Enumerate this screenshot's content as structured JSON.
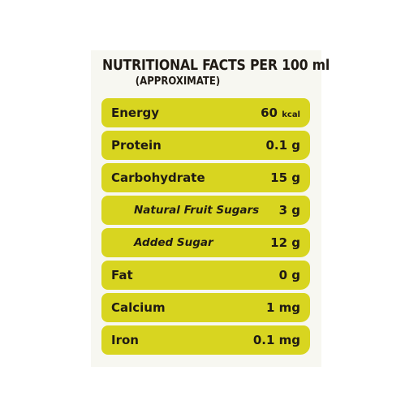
{
  "header": {
    "title_part1": "NUTRITIONAL ",
    "title_part2": "FACTS PER 100 ml",
    "subtitle": "(APPROXIMATE)"
  },
  "rows": [
    {
      "label": "Energy",
      "amount": "60",
      "unit": "kcal"
    },
    {
      "label": "Protein",
      "value": "0.1 g"
    },
    {
      "label": "Carbohydrate",
      "value": "15 g"
    },
    {
      "label": "Natural Fruit Sugars",
      "value": "3 g"
    },
    {
      "label": "Added Sugar",
      "value": "12 g"
    },
    {
      "label": "Fat",
      "value": "0 g"
    },
    {
      "label": "Calcium",
      "value": "1 mg"
    },
    {
      "label": "Iron",
      "value": "0.1 mg"
    }
  ],
  "colors": {
    "row_fill": "#d8d520",
    "text": "#1f1a14",
    "panel": "#f7f7f1"
  }
}
